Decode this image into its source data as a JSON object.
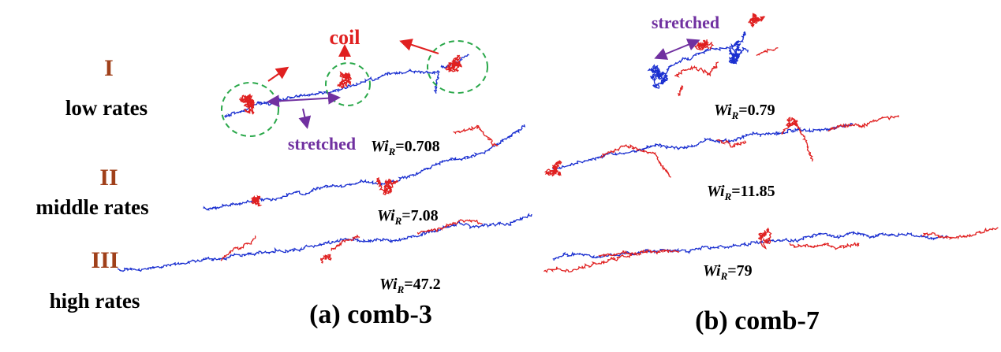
{
  "regimes": [
    {
      "numeral": "I",
      "label": "low rates"
    },
    {
      "numeral": "II",
      "label": "middle rates"
    },
    {
      "numeral": "III",
      "label": "high rates"
    }
  ],
  "annotations": {
    "coil": "coil",
    "stretched_a": "stretched",
    "stretched_b": "stretched"
  },
  "panels": [
    {
      "caption": "(a) comb-3",
      "wi": [
        {
          "symbol": "Wi",
          "sub": "R",
          "value": "=0.708"
        },
        {
          "symbol": "Wi",
          "sub": "R",
          "value": "=7.08"
        },
        {
          "symbol": "Wi",
          "sub": "R",
          "value": "=47.2"
        }
      ]
    },
    {
      "caption": "(b) comb-7",
      "wi": [
        {
          "symbol": "Wi",
          "sub": "R",
          "value": "=0.79"
        },
        {
          "symbol": "Wi",
          "sub": "R",
          "value": "=11.85"
        },
        {
          "symbol": "Wi",
          "sub": "R",
          "value": "=79"
        }
      ]
    }
  ]
}
